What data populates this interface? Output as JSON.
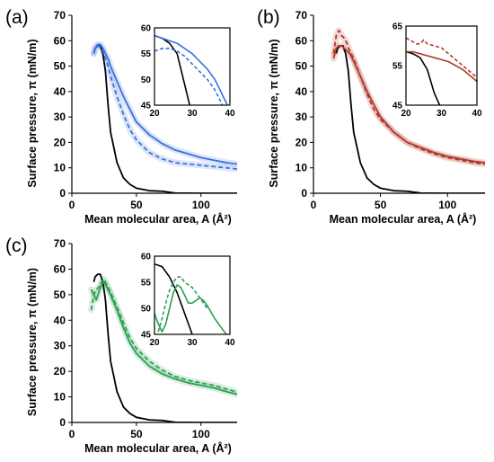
{
  "chart_data": [
    {
      "type": "line",
      "panel_label": "(a)",
      "xlabel": "Mean molecular area, A (Å²)",
      "ylabel": "Surface pressure, π (mN/m)",
      "xlim": [
        0,
        128
      ],
      "ylim": [
        0,
        70
      ],
      "xticks": [
        0,
        50,
        100
      ],
      "yticks": [
        0,
        10,
        20,
        30,
        40,
        50,
        60,
        70
      ],
      "series": [
        {
          "color": "#000000",
          "style": "solid",
          "x": [
            17,
            18,
            20,
            22,
            24,
            26,
            28,
            30,
            35,
            40,
            45,
            50,
            60,
            70,
            80,
            100,
            128
          ],
          "y": [
            55,
            57,
            58,
            58,
            55,
            48,
            35,
            24,
            12,
            6,
            3.5,
            2,
            1,
            0.8,
            0.1,
            0,
            0
          ]
        },
        {
          "color": "#3b6fe0",
          "style": "solid",
          "x": [
            17,
            18,
            20,
            22,
            24,
            26,
            28,
            30,
            35,
            40,
            45,
            50,
            60,
            70,
            80,
            90,
            100,
            110,
            120,
            128
          ],
          "y": [
            55,
            57,
            58.5,
            58.5,
            57,
            55,
            53,
            50,
            44,
            38,
            33,
            28,
            23,
            19.5,
            17,
            15.5,
            14,
            13,
            12,
            11.5
          ]
        },
        {
          "color": "#3b6fe0",
          "style": "dashed",
          "x": [
            17,
            18,
            20,
            22,
            24,
            26,
            28,
            30,
            35,
            40,
            45,
            50,
            60,
            70,
            80,
            90,
            100,
            110,
            120,
            128
          ],
          "y": [
            55,
            57,
            58,
            57.5,
            56,
            53,
            50,
            46,
            38,
            31,
            25,
            21,
            16,
            13.5,
            12,
            11.5,
            11,
            10.5,
            10,
            9.5
          ]
        }
      ],
      "inset": {
        "xlim": [
          20,
          40
        ],
        "ylim": [
          45,
          60
        ],
        "xticks": [
          20,
          30,
          40
        ],
        "yticks": [
          45,
          50,
          55,
          60
        ],
        "series": [
          {
            "color": "#000000",
            "style": "solid",
            "x": [
              20,
              22,
              24,
              26,
              27,
              28,
              29,
              30
            ],
            "y": [
              58.5,
              58,
              57,
              55,
              52,
              49,
              46,
              43
            ]
          },
          {
            "color": "#3b6fe0",
            "style": "solid",
            "x": [
              20,
              22,
              24,
              26,
              28,
              30,
              32,
              34,
              36,
              38,
              40
            ],
            "y": [
              58.5,
              58,
              57.5,
              57,
              56,
              55,
              53.5,
              52,
              50,
              47,
              44
            ]
          },
          {
            "color": "#3b6fe0",
            "style": "dashed",
            "x": [
              20,
              22,
              24,
              26,
              28,
              30,
              32,
              34,
              36,
              38
            ],
            "y": [
              55.5,
              56,
              56,
              55.5,
              54.5,
              53,
              51.5,
              50,
              48,
              45
            ]
          }
        ]
      }
    },
    {
      "type": "line",
      "panel_label": "(b)",
      "xlabel": "Mean molecular area, A (Å²)",
      "ylabel": "Surface pressure, π (mN/m)",
      "xlim": [
        0,
        128
      ],
      "ylim": [
        0,
        70
      ],
      "xticks": [
        0,
        50,
        100
      ],
      "yticks": [
        0,
        10,
        20,
        30,
        40,
        50,
        60,
        70
      ],
      "series": [
        {
          "color": "#000000",
          "style": "solid",
          "x": [
            17,
            18,
            20,
            22,
            24,
            26,
            28,
            30,
            35,
            40,
            45,
            50,
            60,
            70,
            80,
            100,
            128
          ],
          "y": [
            55,
            57,
            58,
            58,
            55,
            48,
            35,
            24,
            12,
            6,
            3.5,
            2,
            1,
            0.8,
            0.1,
            0,
            0
          ]
        },
        {
          "color": "#b0392b",
          "style": "solid",
          "x": [
            15,
            17,
            19,
            21,
            23,
            25,
            27,
            30,
            35,
            40,
            45,
            50,
            60,
            70,
            80,
            90,
            100,
            110,
            120,
            128
          ],
          "y": [
            53,
            57,
            58,
            58,
            57,
            56,
            55,
            52,
            46,
            40,
            35,
            30,
            24,
            20,
            18,
            16,
            14.5,
            13.5,
            12.5,
            12
          ]
        },
        {
          "color": "#b0392b",
          "style": "dashed",
          "x": [
            15,
            17,
            19,
            21,
            23,
            25,
            27,
            30,
            35,
            40,
            45,
            50,
            60,
            70,
            80,
            90,
            100,
            110,
            120,
            128
          ],
          "y": [
            55,
            62,
            64,
            62,
            61,
            59,
            56,
            53,
            46,
            39,
            33,
            29,
            24,
            20,
            17.5,
            15.5,
            14,
            13,
            12,
            11.5
          ]
        }
      ],
      "inset": {
        "xlim": [
          20,
          40
        ],
        "ylim": [
          45,
          65
        ],
        "xticks": [
          20,
          30,
          40
        ],
        "yticks": [
          45,
          55,
          65
        ],
        "series": [
          {
            "color": "#000000",
            "style": "solid",
            "x": [
              20,
              22,
              24,
              26,
              27,
              28,
              29,
              30
            ],
            "y": [
              58.5,
              58,
              57,
              54,
              51,
              48,
              46,
              44
            ]
          },
          {
            "color": "#b0392b",
            "style": "solid",
            "x": [
              20,
              22,
              24,
              26,
              28,
              30,
              32,
              34,
              36,
              38,
              40
            ],
            "y": [
              58.5,
              58.5,
              58,
              57.5,
              57,
              56.5,
              56,
              55,
              54,
              52.5,
              51
            ]
          },
          {
            "color": "#b0392b",
            "style": "dashed",
            "x": [
              20,
              21,
              22,
              23,
              24,
              25,
              26,
              28,
              30,
              32,
              34,
              36,
              38,
              40
            ],
            "y": [
              62,
              61.5,
              61,
              60.5,
              60.5,
              61.5,
              60.5,
              60,
              59.5,
              58,
              56.5,
              55,
              53.5,
              52
            ]
          }
        ]
      }
    },
    {
      "type": "line",
      "panel_label": "(c)",
      "xlabel": "Mean molecular area, A (Å²)",
      "ylabel": "Surface pressure, π (mN/m)",
      "xlim": [
        0,
        128
      ],
      "ylim": [
        0,
        70
      ],
      "xticks": [
        0,
        50,
        100
      ],
      "yticks": [
        0,
        10,
        20,
        30,
        40,
        50,
        60,
        70
      ],
      "series": [
        {
          "color": "#000000",
          "style": "solid",
          "x": [
            17,
            18,
            20,
            22,
            24,
            26,
            28,
            30,
            35,
            40,
            45,
            50,
            60,
            70,
            80,
            100,
            128
          ],
          "y": [
            55,
            57,
            58,
            58,
            55,
            48,
            35,
            24,
            12,
            6,
            3.5,
            2,
            1,
            0.8,
            0.1,
            0,
            0
          ]
        },
        {
          "color": "#2e9e52",
          "style": "solid",
          "x": [
            15,
            17,
            19,
            21,
            23,
            25,
            27,
            30,
            35,
            40,
            45,
            50,
            60,
            70,
            80,
            90,
            100,
            110,
            120,
            128
          ],
          "y": [
            52,
            50,
            48,
            51,
            54,
            55,
            53,
            50,
            44,
            37,
            31,
            27,
            22,
            19,
            17,
            15.5,
            14.5,
            13.5,
            12,
            11
          ]
        },
        {
          "color": "#2e9e52",
          "style": "dashed",
          "x": [
            15,
            17,
            19,
            21,
            23,
            25,
            27,
            30,
            35,
            40,
            45,
            50,
            60,
            70,
            80,
            90,
            100,
            110,
            120,
            128
          ],
          "y": [
            44,
            50,
            52,
            53,
            55,
            56,
            54,
            51,
            45,
            39,
            33,
            29,
            24,
            20.5,
            18,
            16.5,
            15.5,
            14.5,
            13,
            12
          ]
        }
      ],
      "inset": {
        "xlim": [
          20,
          40
        ],
        "ylim": [
          45,
          60
        ],
        "xticks": [
          20,
          30,
          40
        ],
        "yticks": [
          45,
          50,
          55,
          60
        ],
        "series": [
          {
            "color": "#000000",
            "style": "solid",
            "x": [
              20,
              22,
              24,
              26,
              27,
              28,
              29,
              30
            ],
            "y": [
              58.5,
              58,
              56,
              53,
              51,
              49,
              47,
              45
            ]
          },
          {
            "color": "#2e9e52",
            "style": "solid",
            "x": [
              20,
              21,
              22,
              23,
              24,
              25,
              26,
              27,
              28,
              29,
              30,
              31,
              32,
              33,
              34,
              36,
              38,
              39
            ],
            "y": [
              49,
              47,
              45.5,
              47,
              50,
              53,
              54.5,
              54,
              52.5,
              51,
              51,
              51.5,
              52,
              51.5,
              50.5,
              48,
              46,
              45
            ]
          },
          {
            "color": "#2e9e52",
            "style": "dashed",
            "x": [
              21,
              22,
              23,
              24,
              25,
              26,
              27,
              28,
              29,
              30,
              32,
              34
            ],
            "y": [
              45.5,
              48,
              51,
              53.5,
              55,
              56,
              56,
              55,
              54.5,
              54,
              52,
              50
            ]
          }
        ]
      }
    }
  ]
}
